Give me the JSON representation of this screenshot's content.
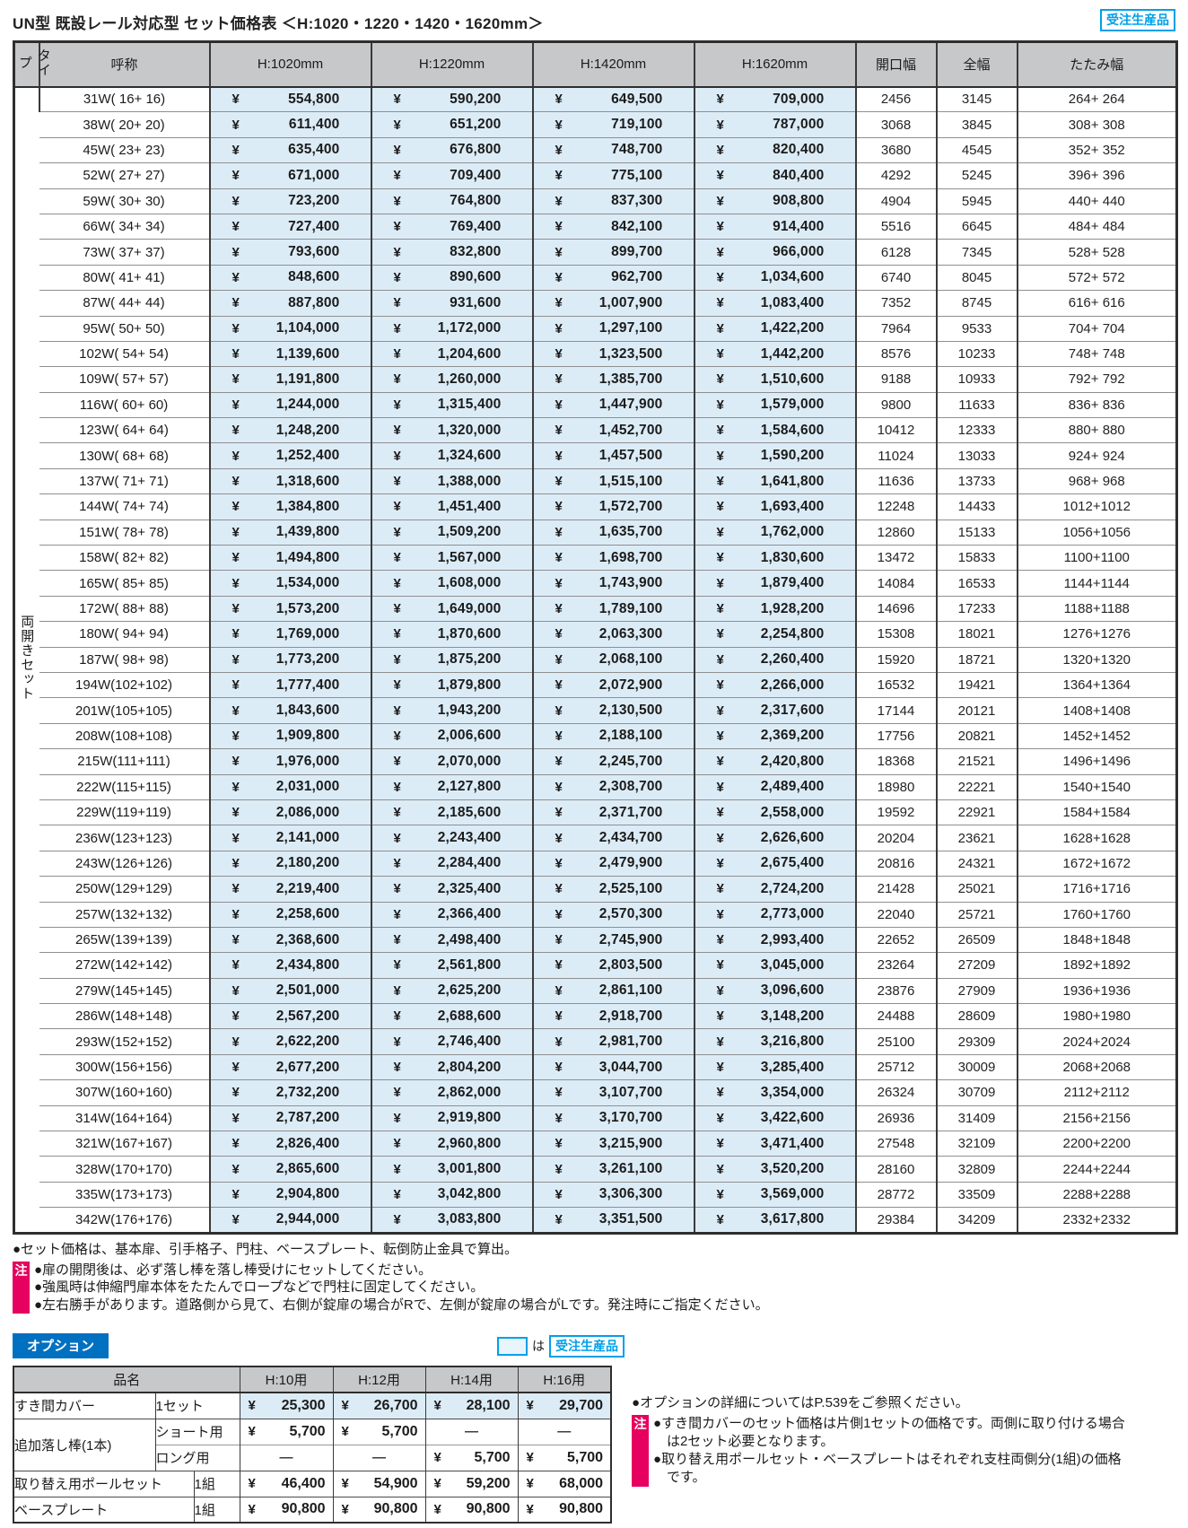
{
  "page": {
    "title": "UN型 既設レール対応型 セット価格表 ＜H:1020・1220・1420・1620mm＞",
    "made_to_order_badge": "受注生産品"
  },
  "colors": {
    "accent_cyan": "#00a0e9",
    "header_gray": "#c7c8ca",
    "price_cell_blue": "#dcecf7",
    "note_pink": "#e6005f",
    "option_label_blue": "#0070c0"
  },
  "main_table": {
    "type_label": "タイプ",
    "type_value": "両開きセット",
    "yen": "¥",
    "columns": [
      "呼称",
      "H:1020mm",
      "H:1220mm",
      "H:1420mm",
      "H:1620mm",
      "開口幅",
      "全幅",
      "たたみ幅"
    ],
    "rows": [
      {
        "name": "31W( 16+ 16)",
        "p1020": "554,800",
        "p1220": "590,200",
        "p1420": "649,500",
        "p1620": "709,000",
        "opening": "2456",
        "full": "3145",
        "fold": "264+ 264"
      },
      {
        "name": "38W( 20+ 20)",
        "p1020": "611,400",
        "p1220": "651,200",
        "p1420": "719,100",
        "p1620": "787,000",
        "opening": "3068",
        "full": "3845",
        "fold": "308+ 308"
      },
      {
        "name": "45W( 23+ 23)",
        "p1020": "635,400",
        "p1220": "676,800",
        "p1420": "748,700",
        "p1620": "820,400",
        "opening": "3680",
        "full": "4545",
        "fold": "352+ 352"
      },
      {
        "name": "52W( 27+ 27)",
        "p1020": "671,000",
        "p1220": "709,400",
        "p1420": "775,100",
        "p1620": "840,400",
        "opening": "4292",
        "full": "5245",
        "fold": "396+ 396"
      },
      {
        "name": "59W( 30+ 30)",
        "p1020": "723,200",
        "p1220": "764,800",
        "p1420": "837,300",
        "p1620": "908,800",
        "opening": "4904",
        "full": "5945",
        "fold": "440+ 440"
      },
      {
        "name": "66W( 34+ 34)",
        "p1020": "727,400",
        "p1220": "769,400",
        "p1420": "842,100",
        "p1620": "914,400",
        "opening": "5516",
        "full": "6645",
        "fold": "484+ 484"
      },
      {
        "name": "73W( 37+ 37)",
        "p1020": "793,600",
        "p1220": "832,800",
        "p1420": "899,700",
        "p1620": "966,000",
        "opening": "6128",
        "full": "7345",
        "fold": "528+ 528"
      },
      {
        "name": "80W( 41+ 41)",
        "p1020": "848,600",
        "p1220": "890,600",
        "p1420": "962,700",
        "p1620": "1,034,600",
        "opening": "6740",
        "full": "8045",
        "fold": "572+ 572"
      },
      {
        "name": "87W( 44+ 44)",
        "p1020": "887,800",
        "p1220": "931,600",
        "p1420": "1,007,900",
        "p1620": "1,083,400",
        "opening": "7352",
        "full": "8745",
        "fold": "616+ 616"
      },
      {
        "name": "95W( 50+ 50)",
        "p1020": "1,104,000",
        "p1220": "1,172,000",
        "p1420": "1,297,100",
        "p1620": "1,422,200",
        "opening": "7964",
        "full": "9533",
        "fold": "704+ 704"
      },
      {
        "name": "102W( 54+ 54)",
        "p1020": "1,139,600",
        "p1220": "1,204,600",
        "p1420": "1,323,500",
        "p1620": "1,442,200",
        "opening": "8576",
        "full": "10233",
        "fold": "748+ 748"
      },
      {
        "name": "109W( 57+ 57)",
        "p1020": "1,191,800",
        "p1220": "1,260,000",
        "p1420": "1,385,700",
        "p1620": "1,510,600",
        "opening": "9188",
        "full": "10933",
        "fold": "792+ 792"
      },
      {
        "name": "116W( 60+ 60)",
        "p1020": "1,244,000",
        "p1220": "1,315,400",
        "p1420": "1,447,900",
        "p1620": "1,579,000",
        "opening": "9800",
        "full": "11633",
        "fold": "836+ 836"
      },
      {
        "name": "123W( 64+ 64)",
        "p1020": "1,248,200",
        "p1220": "1,320,000",
        "p1420": "1,452,700",
        "p1620": "1,584,600",
        "opening": "10412",
        "full": "12333",
        "fold": "880+ 880"
      },
      {
        "name": "130W( 68+ 68)",
        "p1020": "1,252,400",
        "p1220": "1,324,600",
        "p1420": "1,457,500",
        "p1620": "1,590,200",
        "opening": "11024",
        "full": "13033",
        "fold": "924+ 924"
      },
      {
        "name": "137W( 71+ 71)",
        "p1020": "1,318,600",
        "p1220": "1,388,000",
        "p1420": "1,515,100",
        "p1620": "1,641,800",
        "opening": "11636",
        "full": "13733",
        "fold": "968+ 968"
      },
      {
        "name": "144W( 74+ 74)",
        "p1020": "1,384,800",
        "p1220": "1,451,400",
        "p1420": "1,572,700",
        "p1620": "1,693,400",
        "opening": "12248",
        "full": "14433",
        "fold": "1012+1012"
      },
      {
        "name": "151W( 78+ 78)",
        "p1020": "1,439,800",
        "p1220": "1,509,200",
        "p1420": "1,635,700",
        "p1620": "1,762,000",
        "opening": "12860",
        "full": "15133",
        "fold": "1056+1056"
      },
      {
        "name": "158W( 82+ 82)",
        "p1020": "1,494,800",
        "p1220": "1,567,000",
        "p1420": "1,698,700",
        "p1620": "1,830,600",
        "opening": "13472",
        "full": "15833",
        "fold": "1100+1100"
      },
      {
        "name": "165W( 85+ 85)",
        "p1020": "1,534,000",
        "p1220": "1,608,000",
        "p1420": "1,743,900",
        "p1620": "1,879,400",
        "opening": "14084",
        "full": "16533",
        "fold": "1144+1144"
      },
      {
        "name": "172W( 88+ 88)",
        "p1020": "1,573,200",
        "p1220": "1,649,000",
        "p1420": "1,789,100",
        "p1620": "1,928,200",
        "opening": "14696",
        "full": "17233",
        "fold": "1188+1188"
      },
      {
        "name": "180W( 94+ 94)",
        "p1020": "1,769,000",
        "p1220": "1,870,600",
        "p1420": "2,063,300",
        "p1620": "2,254,800",
        "opening": "15308",
        "full": "18021",
        "fold": "1276+1276"
      },
      {
        "name": "187W( 98+ 98)",
        "p1020": "1,773,200",
        "p1220": "1,875,200",
        "p1420": "2,068,100",
        "p1620": "2,260,400",
        "opening": "15920",
        "full": "18721",
        "fold": "1320+1320"
      },
      {
        "name": "194W(102+102)",
        "p1020": "1,777,400",
        "p1220": "1,879,800",
        "p1420": "2,072,900",
        "p1620": "2,266,000",
        "opening": "16532",
        "full": "19421",
        "fold": "1364+1364"
      },
      {
        "name": "201W(105+105)",
        "p1020": "1,843,600",
        "p1220": "1,943,200",
        "p1420": "2,130,500",
        "p1620": "2,317,600",
        "opening": "17144",
        "full": "20121",
        "fold": "1408+1408"
      },
      {
        "name": "208W(108+108)",
        "p1020": "1,909,800",
        "p1220": "2,006,600",
        "p1420": "2,188,100",
        "p1620": "2,369,200",
        "opening": "17756",
        "full": "20821",
        "fold": "1452+1452"
      },
      {
        "name": "215W(111+111)",
        "p1020": "1,976,000",
        "p1220": "2,070,000",
        "p1420": "2,245,700",
        "p1620": "2,420,800",
        "opening": "18368",
        "full": "21521",
        "fold": "1496+1496"
      },
      {
        "name": "222W(115+115)",
        "p1020": "2,031,000",
        "p1220": "2,127,800",
        "p1420": "2,308,700",
        "p1620": "2,489,400",
        "opening": "18980",
        "full": "22221",
        "fold": "1540+1540"
      },
      {
        "name": "229W(119+119)",
        "p1020": "2,086,000",
        "p1220": "2,185,600",
        "p1420": "2,371,700",
        "p1620": "2,558,000",
        "opening": "19592",
        "full": "22921",
        "fold": "1584+1584"
      },
      {
        "name": "236W(123+123)",
        "p1020": "2,141,000",
        "p1220": "2,243,400",
        "p1420": "2,434,700",
        "p1620": "2,626,600",
        "opening": "20204",
        "full": "23621",
        "fold": "1628+1628"
      },
      {
        "name": "243W(126+126)",
        "p1020": "2,180,200",
        "p1220": "2,284,400",
        "p1420": "2,479,900",
        "p1620": "2,675,400",
        "opening": "20816",
        "full": "24321",
        "fold": "1672+1672"
      },
      {
        "name": "250W(129+129)",
        "p1020": "2,219,400",
        "p1220": "2,325,400",
        "p1420": "2,525,100",
        "p1620": "2,724,200",
        "opening": "21428",
        "full": "25021",
        "fold": "1716+1716"
      },
      {
        "name": "257W(132+132)",
        "p1020": "2,258,600",
        "p1220": "2,366,400",
        "p1420": "2,570,300",
        "p1620": "2,773,000",
        "opening": "22040",
        "full": "25721",
        "fold": "1760+1760"
      },
      {
        "name": "265W(139+139)",
        "p1020": "2,368,600",
        "p1220": "2,498,400",
        "p1420": "2,745,900",
        "p1620": "2,993,400",
        "opening": "22652",
        "full": "26509",
        "fold": "1848+1848"
      },
      {
        "name": "272W(142+142)",
        "p1020": "2,434,800",
        "p1220": "2,561,800",
        "p1420": "2,803,500",
        "p1620": "3,045,000",
        "opening": "23264",
        "full": "27209",
        "fold": "1892+1892"
      },
      {
        "name": "279W(145+145)",
        "p1020": "2,501,000",
        "p1220": "2,625,200",
        "p1420": "2,861,100",
        "p1620": "3,096,600",
        "opening": "23876",
        "full": "27909",
        "fold": "1936+1936"
      },
      {
        "name": "286W(148+148)",
        "p1020": "2,567,200",
        "p1220": "2,688,600",
        "p1420": "2,918,700",
        "p1620": "3,148,200",
        "opening": "24488",
        "full": "28609",
        "fold": "1980+1980"
      },
      {
        "name": "293W(152+152)",
        "p1020": "2,622,200",
        "p1220": "2,746,400",
        "p1420": "2,981,700",
        "p1620": "3,216,800",
        "opening": "25100",
        "full": "29309",
        "fold": "2024+2024"
      },
      {
        "name": "300W(156+156)",
        "p1020": "2,677,200",
        "p1220": "2,804,200",
        "p1420": "3,044,700",
        "p1620": "3,285,400",
        "opening": "25712",
        "full": "30009",
        "fold": "2068+2068"
      },
      {
        "name": "307W(160+160)",
        "p1020": "2,732,200",
        "p1220": "2,862,000",
        "p1420": "3,107,700",
        "p1620": "3,354,000",
        "opening": "26324",
        "full": "30709",
        "fold": "2112+2112"
      },
      {
        "name": "314W(164+164)",
        "p1020": "2,787,200",
        "p1220": "2,919,800",
        "p1420": "3,170,700",
        "p1620": "3,422,600",
        "opening": "26936",
        "full": "31409",
        "fold": "2156+2156"
      },
      {
        "name": "321W(167+167)",
        "p1020": "2,826,400",
        "p1220": "2,960,800",
        "p1420": "3,215,900",
        "p1620": "3,471,400",
        "opening": "27548",
        "full": "32109",
        "fold": "2200+2200"
      },
      {
        "name": "328W(170+170)",
        "p1020": "2,865,600",
        "p1220": "3,001,800",
        "p1420": "3,261,100",
        "p1620": "3,520,200",
        "opening": "28160",
        "full": "32809",
        "fold": "2244+2244"
      },
      {
        "name": "335W(173+173)",
        "p1020": "2,904,800",
        "p1220": "3,042,800",
        "p1420": "3,306,300",
        "p1620": "3,569,000",
        "opening": "28772",
        "full": "33509",
        "fold": "2288+2288"
      },
      {
        "name": "342W(176+176)",
        "p1020": "2,944,000",
        "p1220": "3,083,800",
        "p1420": "3,351,500",
        "p1620": "3,617,800",
        "opening": "29384",
        "full": "34209",
        "fold": "2332+2332"
      }
    ]
  },
  "notes_main": {
    "intro": "●セット価格は、基本扉、引手格子、門柱、ベースプレート、転倒防止金具で算出。",
    "badge": "注",
    "items": [
      "●扉の開閉後は、必ず落し棒を落し棒受けにセットしてください。",
      "●強風時は伸縮門扉本体をたたんでロープなどで門柱に固定してください。",
      "●左右勝手があります。道路側から見て、右側が錠扉の場合がRで、左側が錠扉の場合がLです。発注時にご指定ください。"
    ]
  },
  "options": {
    "label": "オプション",
    "legend_particle": "は",
    "legend_badge": "受注生産品",
    "table": {
      "name_header": "品名",
      "columns": [
        "H:10用",
        "H:12用",
        "H:14用",
        "H:16用"
      ],
      "rows": [
        {
          "name": "すき間カバー",
          "sub": "1セット",
          "cells": [
            {
              "y": "¥",
              "v": "25,300"
            },
            {
              "y": "¥",
              "v": "26,700"
            },
            {
              "y": "¥",
              "v": "28,100"
            },
            {
              "y": "¥",
              "v": "29,700"
            }
          ]
        },
        {
          "name": "追加落し棒(1本)",
          "sub": "ショート用",
          "cells": [
            {
              "y": "¥",
              "v": "5,700"
            },
            {
              "y": "¥",
              "v": "5,700"
            },
            {
              "v": "―"
            },
            {
              "v": "―"
            }
          ]
        },
        {
          "sub": "ロング用",
          "cells": [
            {
              "v": "―"
            },
            {
              "v": "―"
            },
            {
              "y": "¥",
              "v": "5,700"
            },
            {
              "y": "¥",
              "v": "5,700"
            }
          ]
        },
        {
          "name": "取り替え用ポールセット",
          "sub": "1組",
          "cells": [
            {
              "y": "¥",
              "v": "46,400"
            },
            {
              "y": "¥",
              "v": "54,900"
            },
            {
              "y": "¥",
              "v": "59,200"
            },
            {
              "y": "¥",
              "v": "68,000"
            }
          ]
        },
        {
          "name": "ベースプレート",
          "sub": "1組",
          "cells": [
            {
              "y": "¥",
              "v": "90,800"
            },
            {
              "y": "¥",
              "v": "90,800"
            },
            {
              "y": "¥",
              "v": "90,800"
            },
            {
              "y": "¥",
              "v": "90,800"
            }
          ]
        }
      ]
    }
  },
  "notes_options": {
    "intro": "●オプションの詳細についてはP.539をご参照ください。",
    "badge": "注",
    "items": [
      "●すき間カバーのセット価格は片側1セットの価格です。両側に取り付ける場合は2セット必要となります。",
      "●取り替え用ポールセット・ベースプレートはそれぞれ支柱両側分(1組)の価格です。"
    ]
  }
}
